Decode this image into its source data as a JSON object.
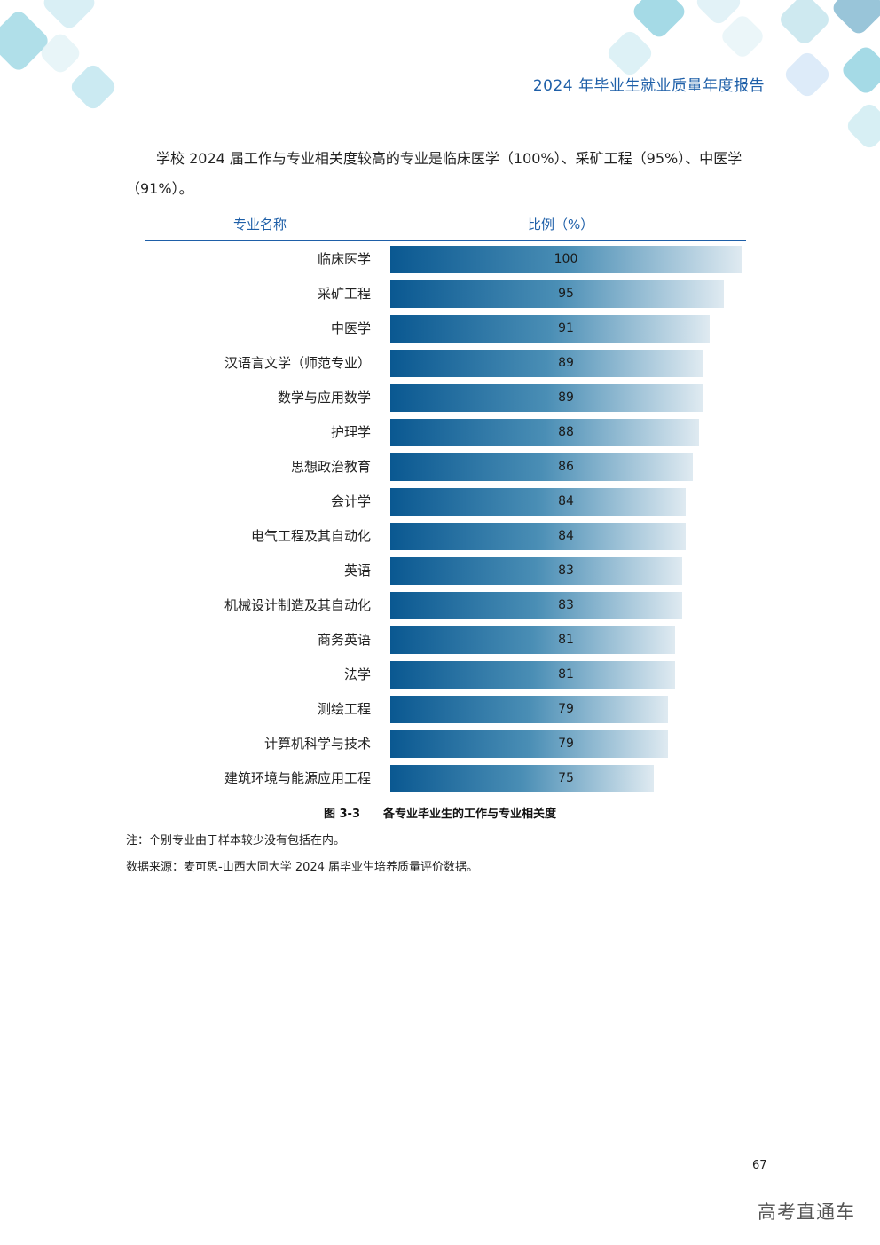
{
  "header": {
    "title": "2024 年毕业生就业质量年度报告"
  },
  "intro": "学校 2024 届工作与专业相关度较高的专业是临床医学（100%）、采矿工程（95%）、中医学（91%）。",
  "chart_data": {
    "type": "bar",
    "column_headers": [
      "专业名称",
      "比例（%）"
    ],
    "categories": [
      "临床医学",
      "采矿工程",
      "中医学",
      "汉语言文学（师范专业）",
      "数学与应用数学",
      "护理学",
      "思想政治教育",
      "会计学",
      "电气工程及其自动化",
      "英语",
      "机械设计制造及其自动化",
      "商务英语",
      "法学",
      "测绘工程",
      "计算机科学与技术",
      "建筑环境与能源应用工程"
    ],
    "values": [
      100,
      95,
      91,
      89,
      89,
      88,
      86,
      84,
      84,
      83,
      83,
      81,
      81,
      79,
      79,
      75
    ],
    "xlim": [
      0,
      100
    ],
    "bar_gradient": [
      "#0a5891",
      "#dfeaf1"
    ]
  },
  "caption": {
    "number": "图 3-3",
    "text": "各专业毕业生的工作与专业相关度"
  },
  "notes": {
    "note": "注：个别专业由于样本较少没有包括在内。",
    "source": "数据来源：麦可思-山西大同大学 2024 届毕业生培养质量评价数据。"
  },
  "page_number": "67",
  "watermark": "高考直通车",
  "colors": {
    "accent": "#1e5fa8"
  }
}
